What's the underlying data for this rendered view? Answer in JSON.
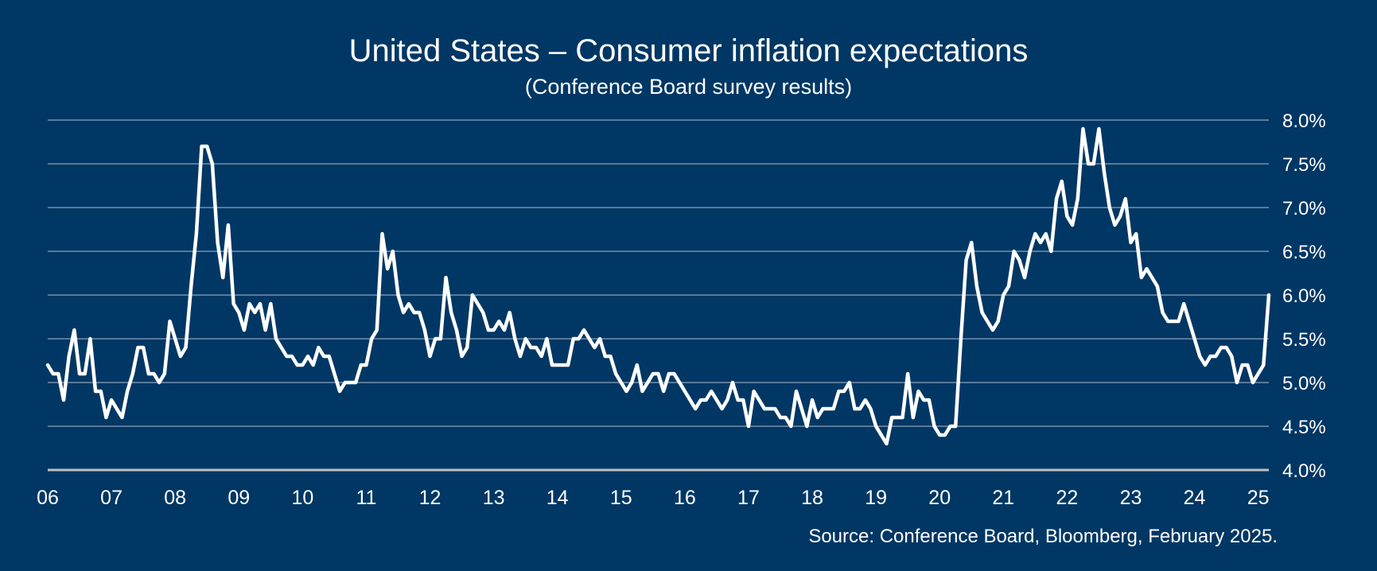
{
  "header": {
    "title": "United States – Consumer inflation expectations",
    "subtitle": "(Conference Board survey results)"
  },
  "footer": {
    "source": "Source: Conference Board, Bloomberg, February 2025."
  },
  "colors": {
    "background": "#003764",
    "line": "#ffffff",
    "grid": "#8ea3bb",
    "axis": "#c0c0c0",
    "text": "#ffffff"
  },
  "chart_data": {
    "type": "line",
    "title": "United States – Consumer inflation expectations",
    "subtitle": "(Conference Board survey results)",
    "xlabel": "",
    "ylabel": "",
    "frequency": "monthly",
    "x_start": "2006-01",
    "x_end": "2025-02",
    "x_tick_labels": [
      "06",
      "07",
      "08",
      "09",
      "10",
      "11",
      "12",
      "13",
      "14",
      "15",
      "16",
      "17",
      "18",
      "19",
      "20",
      "21",
      "22",
      "23",
      "24",
      "25"
    ],
    "y_tick_labels": [
      "4.0%",
      "4.5%",
      "5.0%",
      "5.5%",
      "6.0%",
      "6.5%",
      "7.0%",
      "7.5%",
      "8.0%"
    ],
    "y_ticks": [
      4.0,
      4.5,
      5.0,
      5.5,
      6.0,
      6.5,
      7.0,
      7.5,
      8.0
    ],
    "ylim": [
      4.0,
      8.0
    ],
    "y_axis_position": "right",
    "grid": true,
    "legend": "none",
    "series": [
      {
        "name": "Consumer inflation expectations (%)",
        "values": [
          5.2,
          5.1,
          5.1,
          4.8,
          5.3,
          5.6,
          5.1,
          5.1,
          5.5,
          4.9,
          4.9,
          4.6,
          4.8,
          4.7,
          4.6,
          4.9,
          5.1,
          5.4,
          5.4,
          5.1,
          5.1,
          5.0,
          5.1,
          5.7,
          5.5,
          5.3,
          5.4,
          6.1,
          6.7,
          7.7,
          7.7,
          7.5,
          6.6,
          6.2,
          6.8,
          5.9,
          5.8,
          5.6,
          5.9,
          5.8,
          5.9,
          5.6,
          5.9,
          5.5,
          5.4,
          5.3,
          5.3,
          5.2,
          5.2,
          5.3,
          5.2,
          5.4,
          5.3,
          5.3,
          5.1,
          4.9,
          5.0,
          5.0,
          5.0,
          5.2,
          5.2,
          5.5,
          5.6,
          6.7,
          6.3,
          6.5,
          6.0,
          5.8,
          5.9,
          5.8,
          5.8,
          5.6,
          5.3,
          5.5,
          5.5,
          6.2,
          5.8,
          5.6,
          5.3,
          5.4,
          6.0,
          5.9,
          5.8,
          5.6,
          5.6,
          5.7,
          5.6,
          5.8,
          5.5,
          5.3,
          5.5,
          5.4,
          5.4,
          5.3,
          5.5,
          5.2,
          5.2,
          5.2,
          5.2,
          5.5,
          5.5,
          5.6,
          5.5,
          5.4,
          5.5,
          5.3,
          5.3,
          5.1,
          5.0,
          4.9,
          5.0,
          5.2,
          4.9,
          5.0,
          5.1,
          5.1,
          4.9,
          5.1,
          5.1,
          5.0,
          4.9,
          4.8,
          4.7,
          4.8,
          4.8,
          4.9,
          4.8,
          4.7,
          4.8,
          5.0,
          4.8,
          4.8,
          4.5,
          4.9,
          4.8,
          4.7,
          4.7,
          4.7,
          4.6,
          4.6,
          4.5,
          4.9,
          4.7,
          4.5,
          4.8,
          4.6,
          4.7,
          4.7,
          4.7,
          4.9,
          4.9,
          5.0,
          4.7,
          4.7,
          4.8,
          4.7,
          4.5,
          4.4,
          4.3,
          4.6,
          4.6,
          4.6,
          5.1,
          4.6,
          4.9,
          4.8,
          4.8,
          4.5,
          4.4,
          4.4,
          4.5,
          4.5,
          5.5,
          6.4,
          6.6,
          6.1,
          5.8,
          5.7,
          5.6,
          5.7,
          6.0,
          6.1,
          6.5,
          6.4,
          6.2,
          6.5,
          6.7,
          6.6,
          6.7,
          6.5,
          7.1,
          7.3,
          6.9,
          6.8,
          7.1,
          7.9,
          7.5,
          7.5,
          7.9,
          7.4,
          7.0,
          6.8,
          6.9,
          7.1,
          6.6,
          6.7,
          6.2,
          6.3,
          6.2,
          6.1,
          5.8,
          5.7,
          5.7,
          5.7,
          5.9,
          5.7,
          5.5,
          5.3,
          5.2,
          5.3,
          5.3,
          5.4,
          5.4,
          5.3,
          5.0,
          5.2,
          5.2,
          5.0,
          5.1,
          5.2,
          6.0
        ]
      }
    ],
    "source": "Source: Conference Board, Bloomberg, February 2025."
  }
}
